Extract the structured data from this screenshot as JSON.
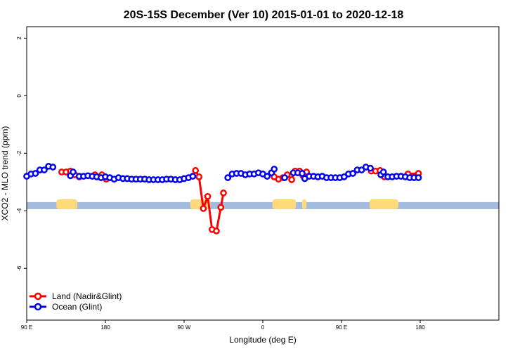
{
  "chart_data": {
    "type": "line",
    "title": "20S-15S December (Ver 10)   2015-01-01 to 2020-12-18",
    "xlabel": "Longitude (deg E)",
    "ylabel": "XCO2 - MLO trend (ppm)",
    "xlim": [
      90,
      630
    ],
    "ylim": [
      -7.8,
      2.4
    ],
    "x_ticks": [
      {
        "value": 90,
        "label": "90 E"
      },
      {
        "value": 180,
        "label": "180"
      },
      {
        "value": 270,
        "label": "90 W"
      },
      {
        "value": 360,
        "label": "0"
      },
      {
        "value": 450,
        "label": "90 E"
      },
      {
        "value": 540,
        "label": "180"
      }
    ],
    "y_ticks": [
      {
        "value": 2,
        "label": "2"
      },
      {
        "value": 0,
        "label": "0"
      },
      {
        "value": -2,
        "label": "-2"
      },
      {
        "value": -4,
        "label": "-4"
      },
      {
        "value": -6,
        "label": "-6"
      }
    ],
    "legend_position": "bottom-left",
    "surface_band": {
      "y_center": -3.82,
      "ocean_color": "#a3bbdd",
      "land_color": "#ffd97a",
      "land_ranges": [
        [
          124,
          148
        ],
        [
          277,
          300
        ],
        [
          371,
          398
        ],
        [
          405,
          410
        ],
        [
          482,
          515
        ]
      ]
    },
    "series": [
      {
        "name": "Land (Nadir&Glint)",
        "color": "#ff0000",
        "segments": [
          [
            [
              130,
              -2.65
            ],
            [
              135,
              -2.65
            ],
            [
              140,
              -2.62
            ],
            [
              145,
              -2.75
            ],
            [
              150,
              -2.82
            ]
          ],
          [
            [
              168,
              -2.75
            ],
            [
              176,
              -2.75
            ],
            [
              181,
              -2.9
            ]
          ],
          [
            [
              283,
              -2.6
            ],
            [
              287,
              -2.82
            ],
            [
              292,
              -3.92
            ],
            [
              297,
              -3.5
            ],
            [
              302,
              -4.65
            ],
            [
              307,
              -4.7
            ],
            [
              312,
              -3.88
            ],
            [
              315,
              -3.38
            ]
          ],
          [
            [
              373,
              -2.82
            ],
            [
              378,
              -2.9
            ],
            [
              383,
              -2.85
            ],
            [
              388,
              -2.75
            ],
            [
              393,
              -2.92
            ],
            [
              397,
              -2.62
            ],
            [
              402,
              -2.62
            ],
            [
              406,
              -2.78
            ],
            [
              410,
              -2.65
            ]
          ],
          [
            [
              484,
              -2.62
            ],
            [
              489,
              -2.62
            ],
            [
              494,
              -2.6
            ],
            [
              499,
              -2.82
            ]
          ],
          [
            [
              526,
              -2.72
            ],
            [
              538,
              -2.7
            ]
          ]
        ]
      },
      {
        "name": "Ocean (Glint)",
        "color": "#0000ee",
        "segments": [
          [
            [
              90,
              -2.8
            ],
            [
              95,
              -2.72
            ],
            [
              100,
              -2.7
            ],
            [
              105,
              -2.58
            ],
            [
              110,
              -2.58
            ],
            [
              115,
              -2.45
            ],
            [
              120,
              -2.48
            ]
          ],
          [
            [
              140,
              -2.78
            ],
            [
              143,
              -2.65
            ]
          ],
          [
            [
              150,
              -2.8
            ],
            [
              155,
              -2.8
            ],
            [
              160,
              -2.78
            ],
            [
              165,
              -2.8
            ],
            [
              170,
              -2.82
            ],
            [
              175,
              -2.85
            ],
            [
              180,
              -2.82
            ],
            [
              185,
              -2.85
            ],
            [
              190,
              -2.9
            ],
            [
              195,
              -2.85
            ],
            [
              200,
              -2.88
            ],
            [
              205,
              -2.88
            ],
            [
              210,
              -2.9
            ],
            [
              215,
              -2.9
            ],
            [
              220,
              -2.9
            ],
            [
              225,
              -2.9
            ],
            [
              230,
              -2.92
            ],
            [
              235,
              -2.92
            ],
            [
              240,
              -2.92
            ],
            [
              245,
              -2.92
            ],
            [
              250,
              -2.9
            ],
            [
              255,
              -2.9
            ],
            [
              260,
              -2.92
            ],
            [
              265,
              -2.92
            ],
            [
              270,
              -2.88
            ],
            [
              275,
              -2.85
            ],
            [
              280,
              -2.8
            ]
          ],
          [
            [
              320,
              -2.85
            ],
            [
              325,
              -2.72
            ],
            [
              330,
              -2.7
            ],
            [
              335,
              -2.7
            ],
            [
              340,
              -2.75
            ],
            [
              345,
              -2.72
            ],
            [
              350,
              -2.72
            ],
            [
              355,
              -2.68
            ],
            [
              360,
              -2.72
            ],
            [
              365,
              -2.8
            ],
            [
              370,
              -2.68
            ],
            [
              373,
              -2.55
            ]
          ],
          [
            [
              385,
              -2.85
            ]
          ],
          [
            [
              395,
              -2.68
            ],
            [
              400,
              -2.68
            ],
            [
              405,
              -2.7
            ],
            [
              408,
              -2.88
            ],
            [
              413,
              -2.8
            ],
            [
              418,
              -2.8
            ],
            [
              423,
              -2.82
            ],
            [
              428,
              -2.8
            ],
            [
              433,
              -2.85
            ],
            [
              438,
              -2.85
            ],
            [
              443,
              -2.85
            ],
            [
              448,
              -2.85
            ],
            [
              453,
              -2.82
            ],
            [
              458,
              -2.72
            ],
            [
              463,
              -2.7
            ],
            [
              468,
              -2.58
            ],
            [
              473,
              -2.58
            ],
            [
              478,
              -2.48
            ],
            [
              483,
              -2.52
            ]
          ],
          [
            [
              495,
              -2.75
            ],
            [
              498,
              -2.65
            ],
            [
              503,
              -2.82
            ],
            [
              508,
              -2.82
            ],
            [
              513,
              -2.8
            ],
            [
              518,
              -2.8
            ],
            [
              523,
              -2.82
            ],
            [
              528,
              -2.85
            ],
            [
              533,
              -2.85
            ],
            [
              538,
              -2.85
            ]
          ]
        ]
      }
    ]
  }
}
